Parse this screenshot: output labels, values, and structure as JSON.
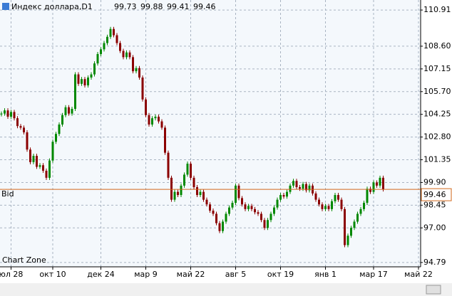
{
  "chart_data": {
    "type": "candlestick",
    "title": "Индекс доллара,D1",
    "header_values": [
      "99.73",
      "99.88",
      "99.41",
      "99.46"
    ],
    "bid_label": "Bid",
    "bid_value": 99.46,
    "watermark": "Chart Zone",
    "up_color": "#008800",
    "down_color": "#8b0000",
    "bid_color": "#d2691e",
    "grid": true,
    "ylim": [
      94.65,
      111.55
    ],
    "yticks": [
      110.91,
      {
        "value": 108.6,
        "label": "108.60"
      },
      107.15,
      {
        "value": 105.7,
        "label": "105.70"
      },
      104.25,
      {
        "value": 102.8,
        "label": "102.80"
      },
      101.35,
      {
        "value": 99.9,
        "label": "99.90"
      },
      98.45,
      {
        "value": 97,
        "label": "97.00"
      },
      94.79
    ],
    "categories": [
      null,
      null,
      null,
      "юл 28",
      null,
      null,
      null,
      null,
      null,
      null,
      null,
      null,
      null,
      null,
      null,
      null,
      "окт 10",
      null,
      null,
      null,
      null,
      null,
      null,
      null,
      null,
      null,
      null,
      null,
      null,
      null,
      null,
      "дек 24",
      null,
      null,
      null,
      null,
      null,
      null,
      null,
      null,
      null,
      null,
      null,
      null,
      null,
      "мар 9",
      null,
      null,
      null,
      null,
      null,
      null,
      null,
      null,
      null,
      null,
      null,
      null,
      null,
      "май 22",
      null,
      null,
      null,
      null,
      null,
      null,
      null,
      null,
      null,
      null,
      null,
      null,
      null,
      "авг 5",
      null,
      null,
      null,
      null,
      null,
      null,
      null,
      null,
      null,
      null,
      null,
      null,
      null,
      "окт 19",
      null,
      null,
      null,
      null,
      null,
      null,
      null,
      null,
      null,
      null,
      null,
      null,
      null,
      "янв 1",
      null,
      null,
      null,
      null,
      null,
      null,
      null,
      null,
      null,
      null,
      null,
      null,
      null,
      null,
      "мар 17",
      null,
      null,
      null,
      null,
      null,
      null,
      null,
      null,
      null,
      null,
      null,
      null,
      null,
      "май 22"
    ],
    "values": [
      104.3,
      104.5,
      104.1,
      104.4,
      104.0,
      103.5,
      103.4,
      103.1,
      102.0,
      101.2,
      101.6,
      100.9,
      101.0,
      100.65,
      100.2,
      101.3,
      102.5,
      103.0,
      103.6,
      104.2,
      104.7,
      104.3,
      104.6,
      106.8,
      106.2,
      106.5,
      106.1,
      106.6,
      106.8,
      107.5,
      108.1,
      108.4,
      108.8,
      109.2,
      109.7,
      109.3,
      108.8,
      108.3,
      107.9,
      108.2,
      107.9,
      107.0,
      107.2,
      106.6,
      105.2,
      104.2,
      103.6,
      104.0,
      104.1,
      103.8,
      103.4,
      101.8,
      100.2,
      98.8,
      99.3,
      99.1,
      99.7,
      100.4,
      101.1,
      100.2,
      99.6,
      99.1,
      99.3,
      98.8,
      98.5,
      98.1,
      97.9,
      97.3,
      96.8,
      97.4,
      97.9,
      98.3,
      98.6,
      99.7,
      98.9,
      98.5,
      98.2,
      98.4,
      98.2,
      98.0,
      97.9,
      97.5,
      97.0,
      97.5,
      97.9,
      98.3,
      98.8,
      99.1,
      99.0,
      99.3,
      99.7,
      100.0,
      99.6,
      99.5,
      99.8,
      99.4,
      99.7,
      99.2,
      98.8,
      98.5,
      98.2,
      98.4,
      98.2,
      98.7,
      99.1,
      98.8,
      98.2,
      95.9,
      96.5,
      97.0,
      97.4,
      97.9,
      98.2,
      98.6,
      99.5,
      99.3,
      99.9,
      99.7,
      100.2,
      99.46,
      null,
      null,
      null,
      null,
      null,
      null,
      null,
      null,
      null,
      null,
      null
    ]
  }
}
